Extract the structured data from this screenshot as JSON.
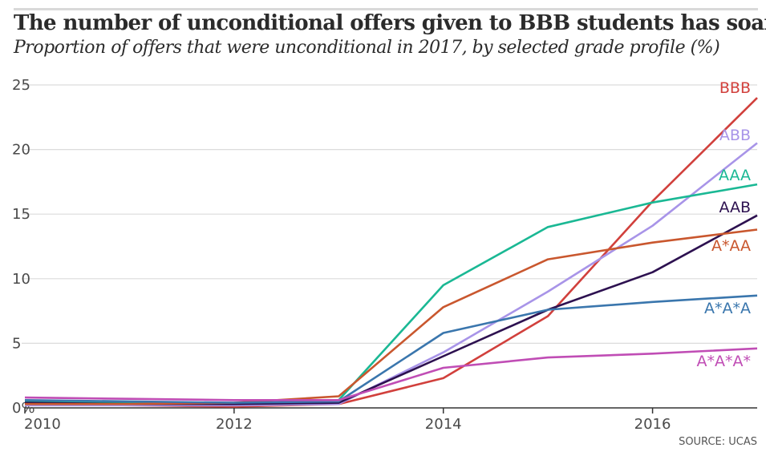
{
  "header": {
    "title": "The number of unconditional offers given to BBB students has soared",
    "subtitle": "Proportion of offers that were unconditional in 2017, by selected grade profile (%)"
  },
  "source": "SOURCE: UCAS",
  "chart_data": {
    "type": "line",
    "title": "The number of unconditional offers given to BBB students has soared",
    "subtitle": "Proportion of offers that were unconditional in 2017, by selected grade profile (%)",
    "xlabel": "",
    "ylabel": "",
    "x": [
      2010,
      2011,
      2012,
      2013,
      2014,
      2015,
      2016,
      2017
    ],
    "xlim": [
      2010,
      2017
    ],
    "ylim": [
      0,
      25
    ],
    "x_ticks": [
      "2010",
      "2012",
      "2014",
      "2016"
    ],
    "y_ticks": [
      "0%",
      "5",
      "10",
      "15",
      "20",
      "25"
    ],
    "grid": "horizontal",
    "legend": "direct labels at right end of lines",
    "series": [
      {
        "name": "BBB",
        "color": "#d1403c",
        "values": [
          0.3,
          0.2,
          0.1,
          0.3,
          2.3,
          7.1,
          16.0,
          24.0
        ]
      },
      {
        "name": "ABB",
        "color": "#a894e8",
        "values": [
          0.2,
          0.2,
          0.2,
          0.3,
          4.3,
          9.0,
          14.1,
          20.5
        ]
      },
      {
        "name": "AAA",
        "color": "#1ab894",
        "values": [
          0.5,
          0.4,
          0.3,
          0.6,
          9.5,
          14.0,
          15.9,
          17.3
        ]
      },
      {
        "name": "AAB",
        "color": "#2d1150",
        "values": [
          0.4,
          0.3,
          0.3,
          0.4,
          4.0,
          7.6,
          10.5,
          14.9
        ]
      },
      {
        "name": "A*AA",
        "color": "#c9572e",
        "values": [
          0.3,
          0.3,
          0.4,
          0.9,
          7.8,
          11.5,
          12.8,
          13.8
        ]
      },
      {
        "name": "A*A*A",
        "color": "#3a76ad",
        "values": [
          0.6,
          0.5,
          0.4,
          0.5,
          5.8,
          7.6,
          8.2,
          8.7
        ]
      },
      {
        "name": "A*A*A*",
        "color": "#c04db5",
        "values": [
          0.8,
          0.7,
          0.6,
          0.6,
          3.1,
          3.9,
          4.2,
          4.6
        ]
      }
    ]
  }
}
